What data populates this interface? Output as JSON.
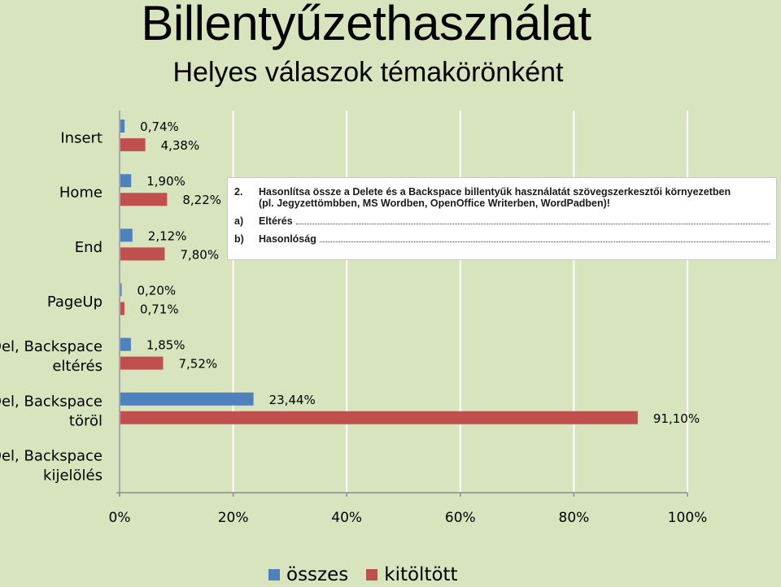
{
  "title": "Billentyűzethasználat",
  "subtitle": "Helyes válaszok témakörönként",
  "colors": {
    "background": "#d7e4bd",
    "osszes": "#4f81bd",
    "kitoltott": "#c0504d",
    "grid": "#ffffff"
  },
  "chart_data": {
    "type": "bar",
    "orientation": "horizontal",
    "categories": [
      [
        "Insert"
      ],
      [
        "Home"
      ],
      [
        "End"
      ],
      [
        "PageUp"
      ],
      [
        "Del, Backspace",
        "eltérés"
      ],
      [
        "Del, Backspace",
        "töröl"
      ],
      [
        "Del, Backspace",
        "kijelölés"
      ]
    ],
    "series": [
      {
        "name": "összes",
        "values": [
          0.74,
          1.9,
          2.12,
          0.2,
          1.85,
          23.44,
          null
        ],
        "labels": [
          "0,74%",
          "1,90%",
          "2,12%",
          "0,20%",
          "1,85%",
          "23,44%",
          ""
        ]
      },
      {
        "name": "kitöltött",
        "values": [
          4.38,
          8.22,
          7.8,
          0.71,
          7.52,
          91.1,
          null
        ],
        "labels": [
          "4,38%",
          "8,22%",
          "7,80%",
          "0,71%",
          "7,52%",
          "91,10%",
          ""
        ]
      }
    ],
    "xlim": [
      0,
      100
    ],
    "ticks": [
      0,
      20,
      40,
      60,
      80,
      100
    ],
    "tick_labels": [
      "0%",
      "20%",
      "40%",
      "60%",
      "80%",
      "100%"
    ],
    "grid": true,
    "legend_position": "bottom"
  },
  "inset": {
    "number": "2.",
    "question_line1": "Hasonlítsa össze a Delete és a Backspace billentyűk használatát szövegszerkesztői környezetben",
    "question_line2": "(pl. Jegyzettömbben, MS Wordben, OpenOffice Writerben, WordPadben)!",
    "option_a_letter": "a)",
    "option_a_text": "Eltérés",
    "option_b_letter": "b)",
    "option_b_text": "Hasonlóság"
  }
}
